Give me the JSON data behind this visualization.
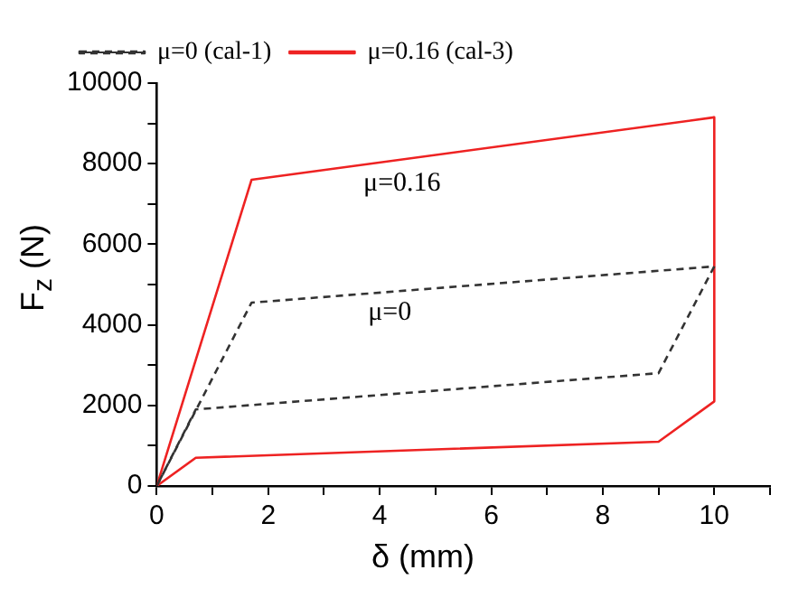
{
  "chart_data": {
    "type": "line",
    "xlabel": "δ (mm)",
    "ylabel": "F$_{z}$ (N)",
    "xlim": [
      0,
      11
    ],
    "ylim": [
      0,
      10000
    ],
    "xticks": [
      0,
      {
        "value": 1,
        "label": null
      },
      2,
      {
        "value": 3,
        "label": null
      },
      4,
      {
        "value": 5,
        "label": null
      },
      6,
      {
        "value": 7,
        "label": null
      },
      8,
      {
        "value": 9,
        "label": null
      },
      10,
      {
        "value": 11,
        "label": null
      }
    ],
    "yticks": [
      0,
      {
        "value": 1000,
        "label": null
      },
      2000,
      {
        "value": 3000,
        "label": null
      },
      4000,
      {
        "value": 5000,
        "label": null
      },
      6000,
      {
        "value": 7000,
        "label": null
      },
      8000,
      {
        "value": 9000,
        "label": null
      },
      10000
    ],
    "series": [
      {
        "name": "μ=0 (cal-1)",
        "color": "#333333",
        "line_style": "dashed",
        "x": [
          0,
          1.7,
          10
        ],
        "values": [
          0,
          4550,
          5450
        ]
      },
      {
        "color": "#333333",
        "line_style": "dashed",
        "x": [
          10,
          9,
          0.7,
          0
        ],
        "values": [
          5450,
          2800,
          1900,
          0
        ]
      },
      {
        "name": "μ=0.16 (cal-3)",
        "color": "#ee2222",
        "line_style": "solid",
        "x": [
          0,
          1.7,
          10
        ],
        "values": [
          0,
          7600,
          9150
        ]
      },
      {
        "color": "#ee2222",
        "line_style": "solid",
        "x": [
          10,
          10,
          9,
          0.7,
          0
        ],
        "values": [
          9150,
          2100,
          1100,
          700,
          0
        ]
      }
    ],
    "annotations": [
      "μ=0.16",
      "μ=0"
    ],
    "legend": "top left",
    "grid": false,
    "marker": "none"
  }
}
